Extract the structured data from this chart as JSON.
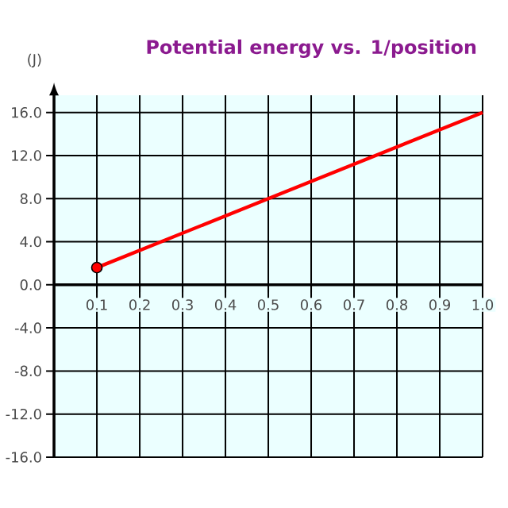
{
  "chart_data": {
    "type": "line",
    "title": "Potential energy vs. 1/position",
    "ylabel": "(J)",
    "series": [
      {
        "color": "#ff0000",
        "marker": "none",
        "values": [
          1.6,
          16
        ]
      },
      {
        "type": "scatter",
        "color": "#ff0000",
        "marker": "circle",
        "x": [
          0.1
        ],
        "values": [
          1.6
        ]
      }
    ],
    "x": [
      0.1,
      1.0
    ],
    "xlim": [
      0,
      1.0
    ],
    "xticks": [
      0.1,
      0.2,
      0.3,
      0.4,
      0.5,
      0.6,
      0.7,
      0.8,
      0.9,
      {
        "value": 1.0,
        "label": "1.0"
      }
    ],
    "ylim": [
      -16,
      16
    ],
    "yticks": [
      {
        "value": -16,
        "label": "-16.0"
      },
      {
        "value": -12,
        "label": "-12.0"
      },
      {
        "value": -8,
        "label": "-8.0"
      },
      {
        "value": -4,
        "label": "-4.0"
      },
      {
        "value": 0,
        "label": "0.0"
      },
      {
        "value": 4,
        "label": "4.0"
      },
      {
        "value": 8,
        "label": "8.0"
      },
      {
        "value": 12,
        "label": "12.0"
      },
      {
        "value": 16,
        "label": "16.0"
      }
    ],
    "grid": true
  }
}
